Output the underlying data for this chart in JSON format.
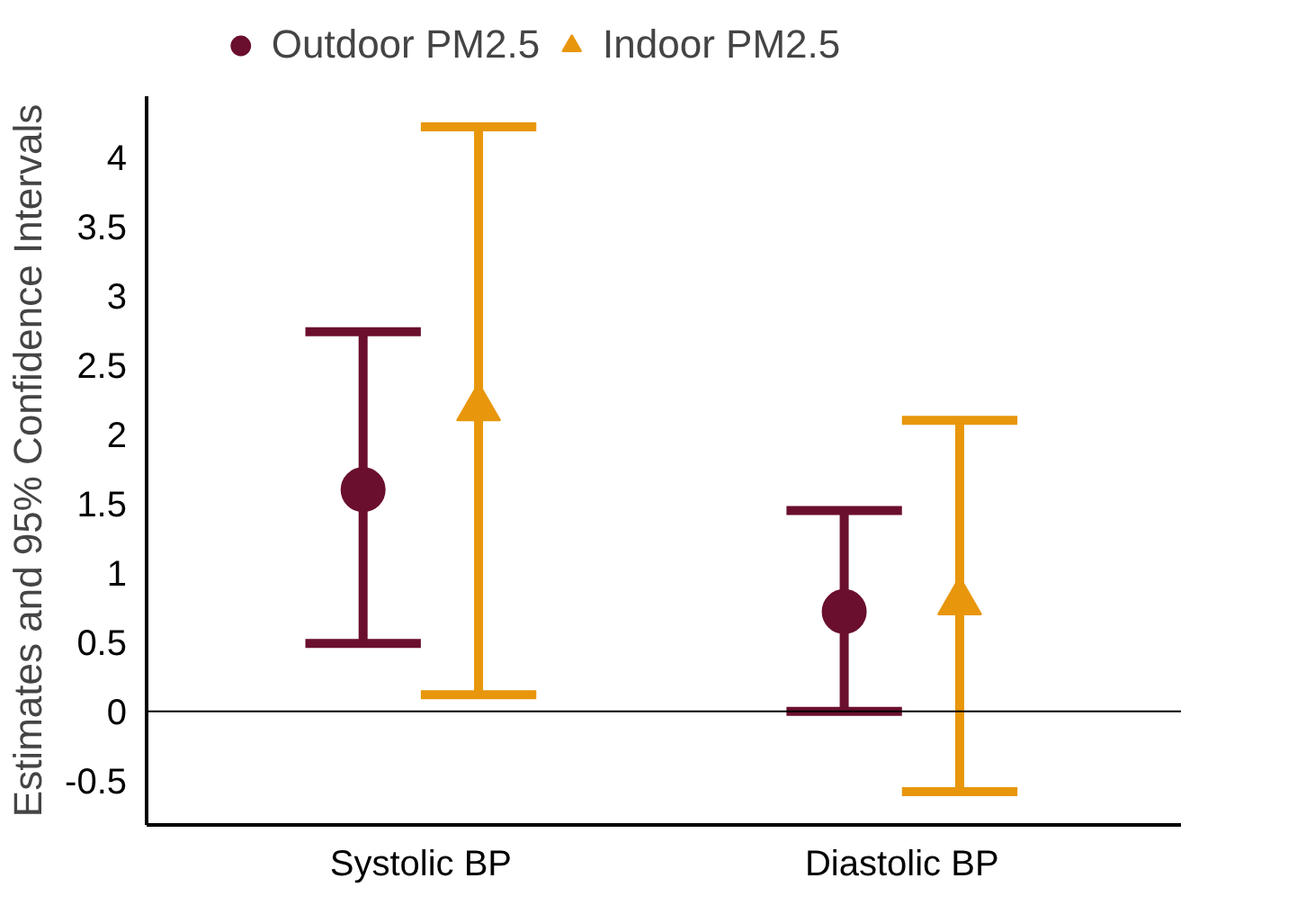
{
  "chart_data": {
    "type": "scatter",
    "ylabel": "Estimates and\n95% Confidence Intervals",
    "categories": [
      "Systolic BP",
      "Diastolic BP"
    ],
    "series": [
      {
        "name": "Outdoor PM2.5",
        "color": "#6b0f2e",
        "marker": "circle",
        "values": [
          1.6,
          0.72
        ],
        "errors": [
          [
            0.49,
            2.74
          ],
          [
            0.0,
            1.45
          ]
        ]
      },
      {
        "name": "Indoor PM2.5",
        "color": "#e8960c",
        "marker": "triangle",
        "values": [
          2.19,
          0.79
        ],
        "errors": [
          [
            0.12,
            4.22
          ],
          [
            -0.58,
            2.1
          ]
        ]
      }
    ],
    "ylim": [
      -0.82,
      4.44
    ],
    "yticks": [
      -0.5,
      0,
      0.5,
      1,
      1.5,
      2,
      2.5,
      3,
      3.5,
      4
    ],
    "ref_lines": [
      {
        "axis": "y",
        "value": 0,
        "color": "#000000"
      }
    ],
    "grid": false,
    "legend": "top"
  }
}
